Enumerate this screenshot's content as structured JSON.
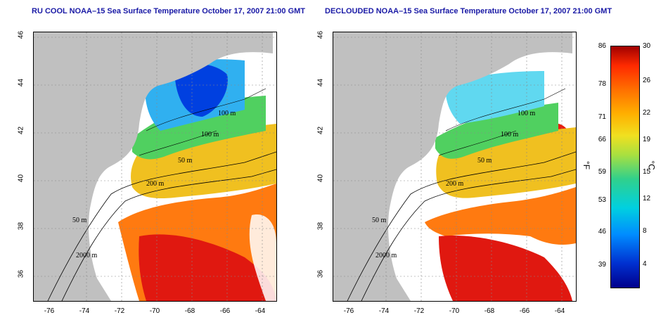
{
  "panels": [
    {
      "title": "RU COOL NOAA–15 Sea Surface Temperature October 17, 2007 21:00 GMT"
    },
    {
      "title": "DECLOUDED NOAA–15 Sea Surface Temperature October 17, 2007 21:00 GMT"
    }
  ],
  "axes": {
    "lat_ticks": [
      "46",
      "44",
      "42",
      "40",
      "38",
      "36"
    ],
    "lon_ticks": [
      "-76",
      "-74",
      "-72",
      "-70",
      "-68",
      "-66",
      "-64"
    ]
  },
  "contours": {
    "left": [
      "100 m",
      "100 m",
      "50 m",
      "200 m",
      "50 m",
      "2000 m"
    ],
    "right": [
      "100 m",
      "100 m",
      "50 m",
      "200 m",
      "50 m",
      "2000 m"
    ]
  },
  "colorbar": {
    "f_ticks": [
      "86",
      "78",
      "71",
      "66",
      "59",
      "53",
      "46",
      "39"
    ],
    "c_ticks": [
      "30",
      "26",
      "22",
      "19",
      "15",
      "12",
      "8",
      "4"
    ],
    "f_unit": "°F",
    "c_unit": "°C"
  },
  "colors": {
    "title": "#1a1aa6",
    "land": "#c0c0c0",
    "warm": "#e81e10",
    "cold": "#0030d0"
  }
}
